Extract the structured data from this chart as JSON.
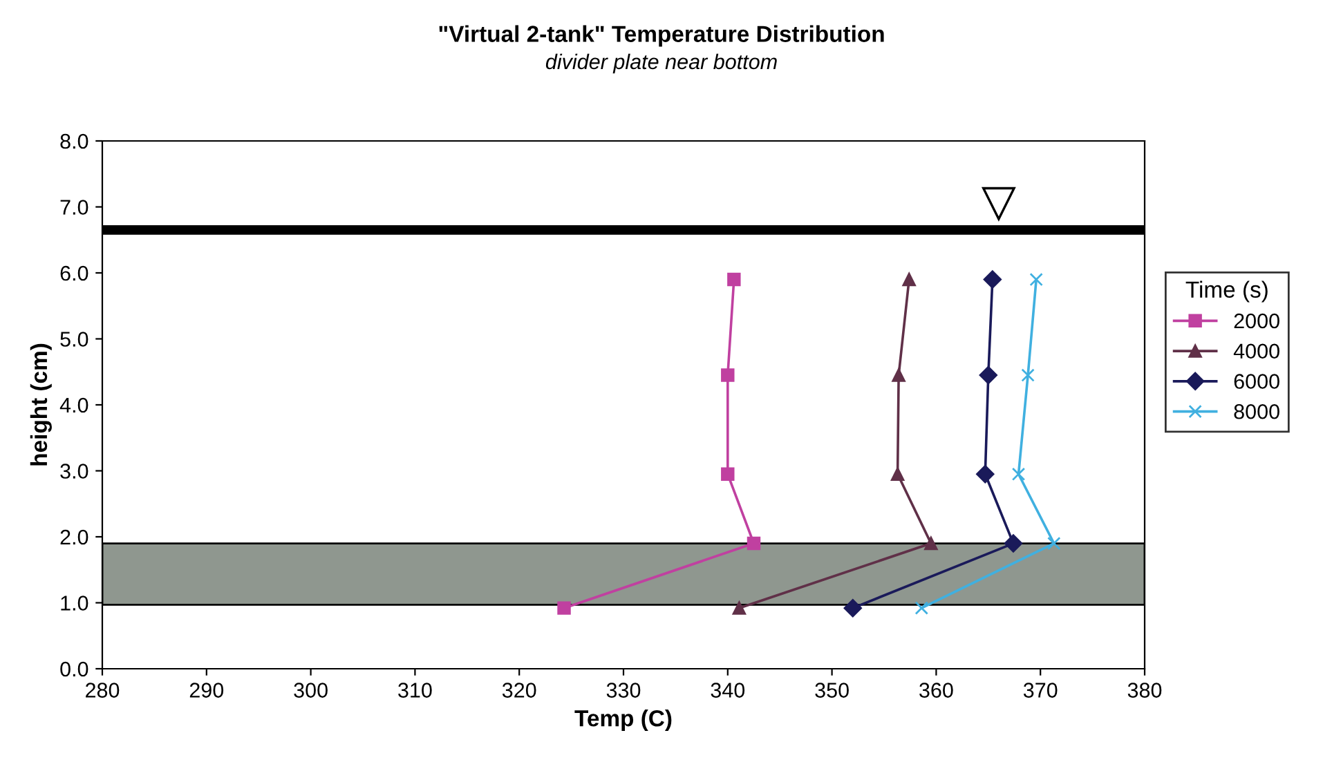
{
  "chart_data": {
    "type": "line",
    "title": "\"Virtual 2-tank\" Temperature Distribution",
    "subtitle": "divider plate near bottom",
    "xlabel": "Temp (C)",
    "ylabel": "height (cm)",
    "legend_title": "Time (s)",
    "legend": "right",
    "grid": false,
    "xlim": [
      280,
      380
    ],
    "xticks": [
      280,
      290,
      300,
      310,
      320,
      330,
      340,
      350,
      360,
      370,
      380
    ],
    "ylim": [
      0,
      8
    ],
    "yticks": [
      {
        "value": 0,
        "label": "0.0"
      },
      {
        "value": 1,
        "label": "1.0"
      },
      {
        "value": 2,
        "label": "2.0"
      },
      {
        "value": 3,
        "label": "3.0"
      },
      {
        "value": 4,
        "label": "4.0"
      },
      {
        "value": 5,
        "label": "5.0"
      },
      {
        "value": 6,
        "label": "6.0"
      },
      {
        "value": 7,
        "label": "7.0"
      },
      {
        "value": 8,
        "label": "8.0"
      }
    ],
    "series": [
      {
        "name": "2000",
        "color": "#c040a0",
        "marker": "square",
        "x": [
          340.6,
          340.0,
          340.0,
          342.5,
          324.3
        ],
        "values": [
          5.9,
          4.45,
          2.95,
          1.9,
          0.92
        ]
      },
      {
        "name": "4000",
        "color": "#603048",
        "marker": "triangle",
        "x": [
          357.4,
          356.4,
          356.3,
          359.5,
          341.1
        ],
        "values": [
          5.9,
          4.45,
          2.95,
          1.9,
          0.92
        ]
      },
      {
        "name": "6000",
        "color": "#1a1a5a",
        "marker": "diamond",
        "x": [
          365.4,
          365.0,
          364.7,
          367.4,
          352.0
        ],
        "values": [
          5.9,
          4.45,
          2.95,
          1.9,
          0.92
        ]
      },
      {
        "name": "8000",
        "color": "#40b0e0",
        "marker": "cross",
        "x": [
          369.6,
          368.8,
          367.9,
          371.3,
          358.6
        ],
        "values": [
          5.9,
          4.45,
          2.95,
          1.9,
          0.92
        ]
      }
    ],
    "ref_lines": [
      {
        "axis": "y",
        "value": 6.65,
        "color": "#000000",
        "line_style": "solid"
      }
    ],
    "bands": [
      {
        "axis": "y",
        "from": 0.97,
        "to": 1.9,
        "color": "#8f978f"
      }
    ]
  }
}
